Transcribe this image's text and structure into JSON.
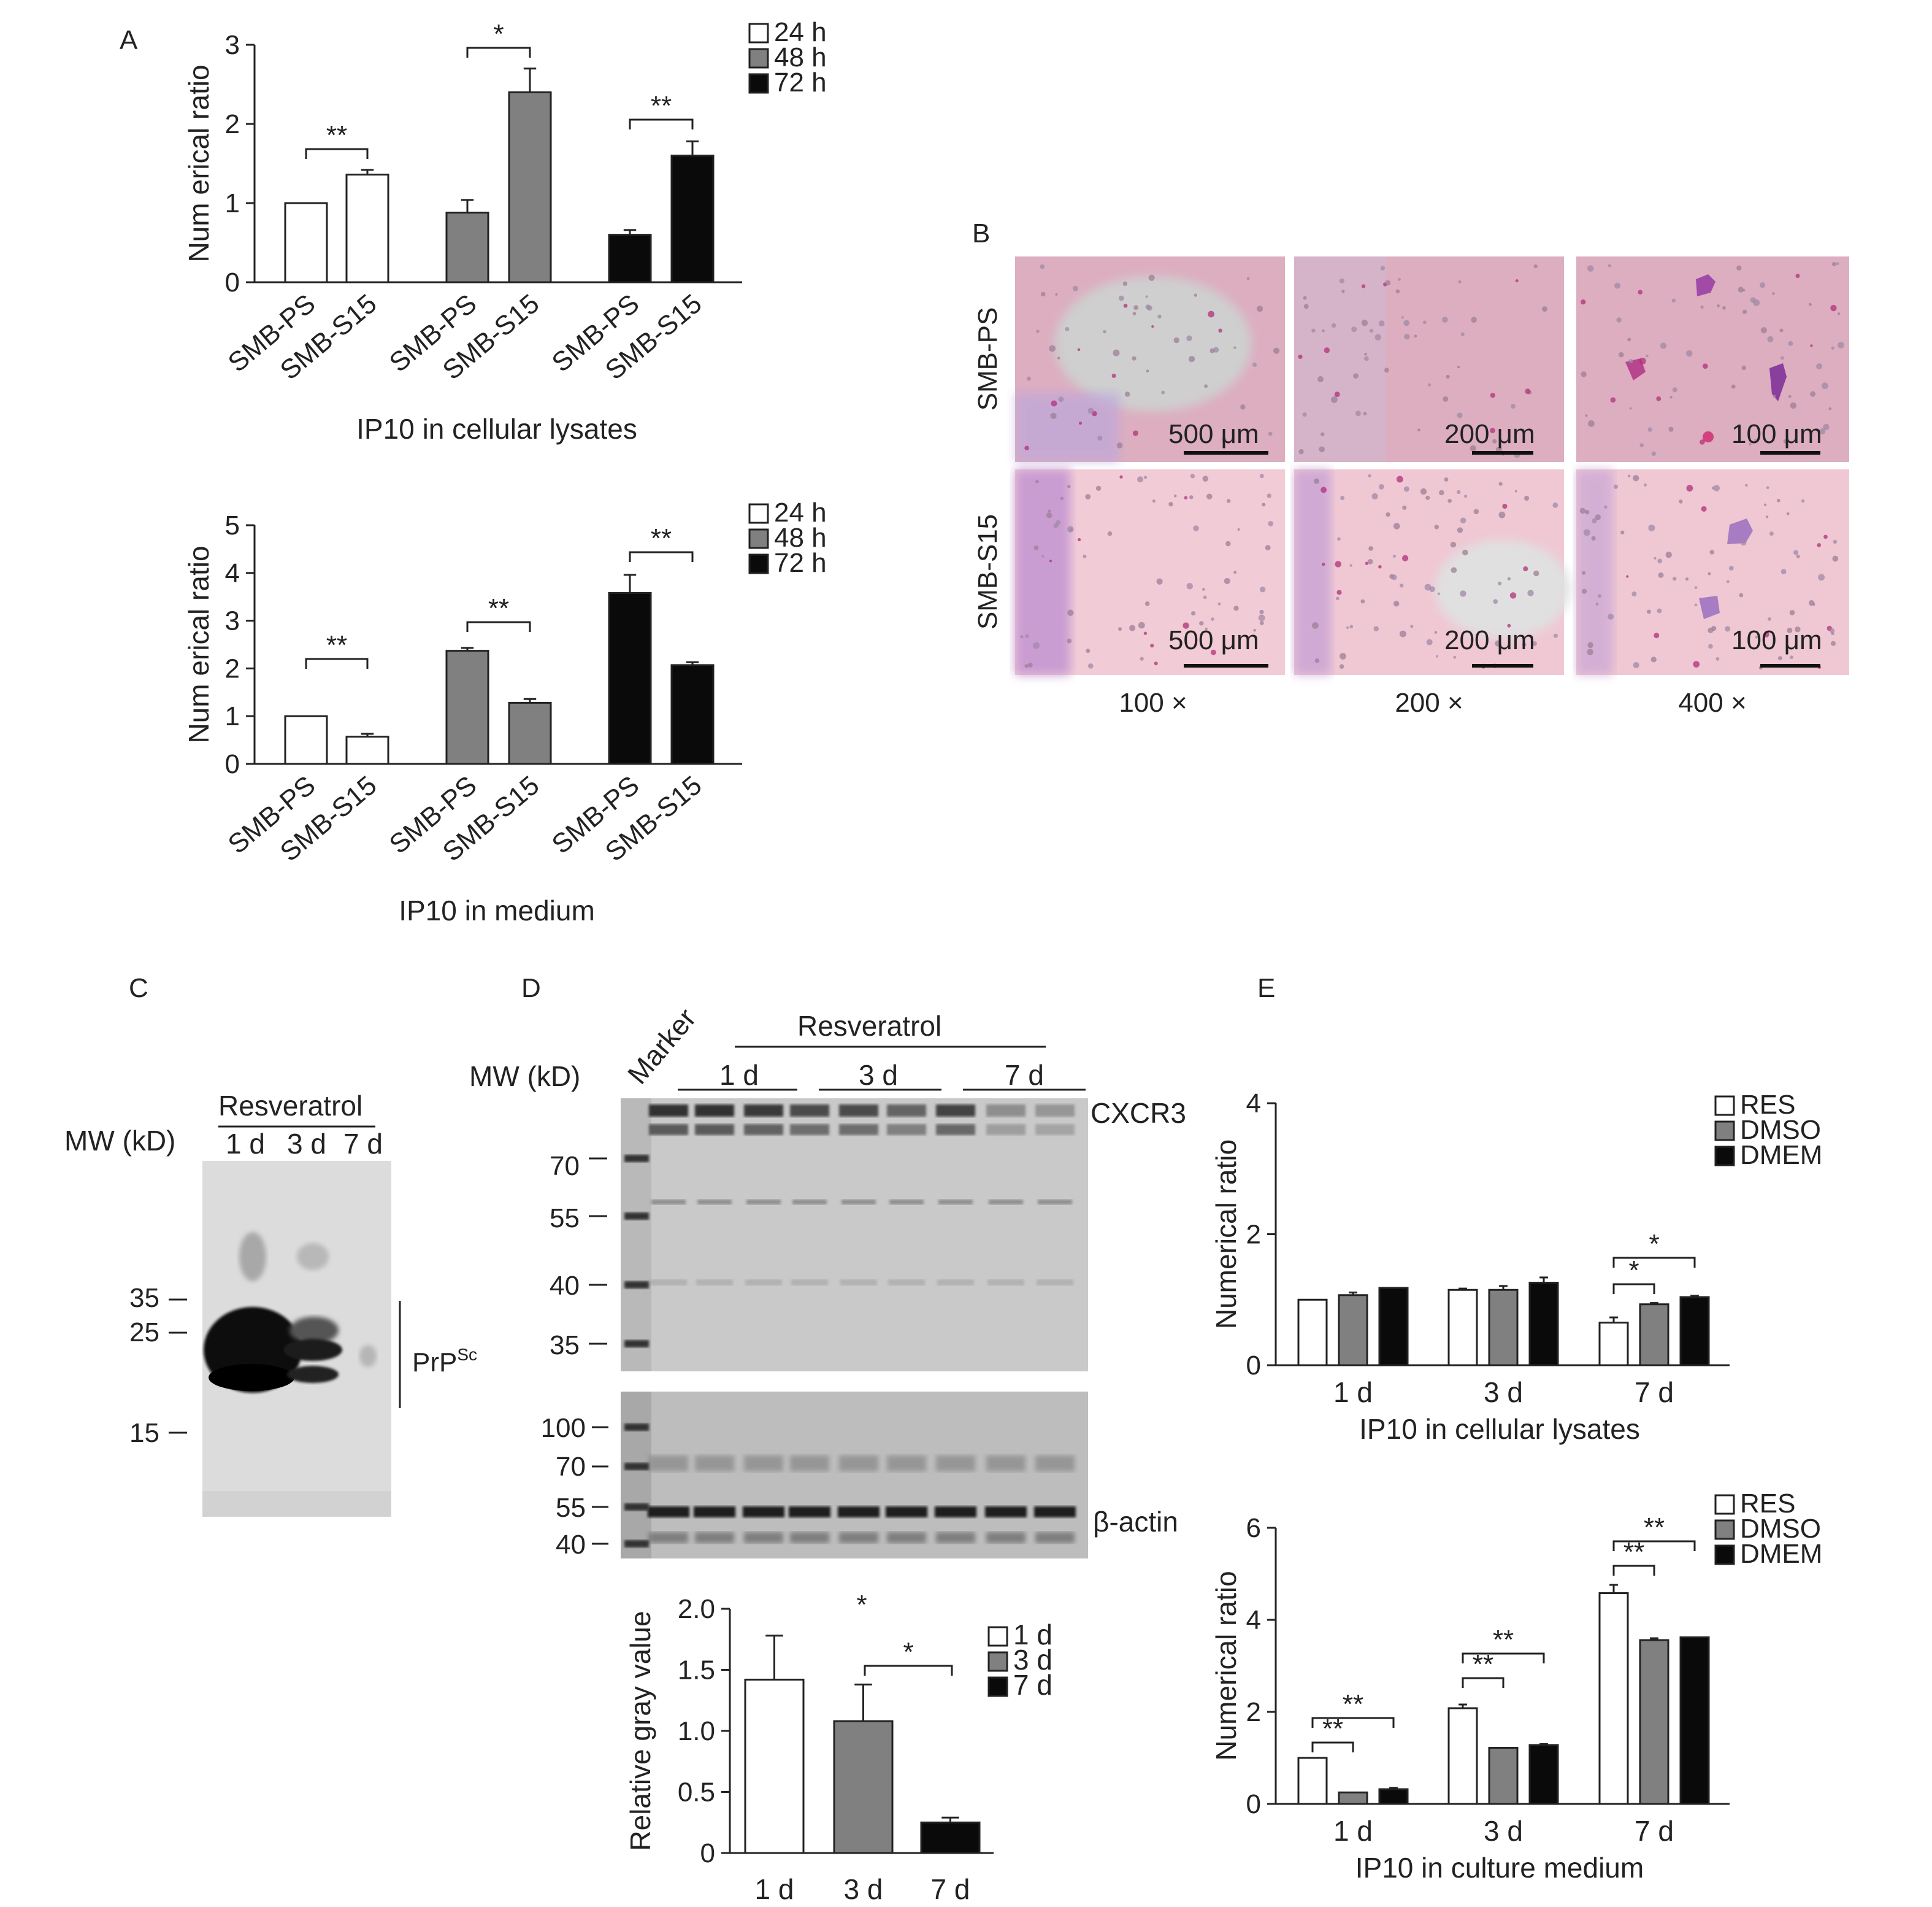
{
  "colors": {
    "white": "#ffffff",
    "gray": "#808080",
    "black": "#0a0a0a",
    "axis": "#222222"
  },
  "panels": {
    "A": {
      "letter": "A"
    },
    "B": {
      "letter": "B"
    },
    "C": {
      "letter": "C"
    },
    "D": {
      "letter": "D"
    },
    "E": {
      "letter": "E"
    }
  },
  "chart_data": [
    {
      "id": "A1",
      "type": "bar",
      "title": "IP10 in cellular lysates",
      "ylabel": "Num erical ratio",
      "ylim": [
        0,
        3
      ],
      "yticks": [
        0,
        1,
        2,
        3
      ],
      "categories": [
        "SMB-PS",
        "SMB-S15",
        "SMB-PS",
        "SMB-S15",
        "SMB-PS",
        "SMB-S15"
      ],
      "legend": [
        "24 h",
        "48 h",
        "72 h"
      ],
      "bars": [
        {
          "group": "24 h",
          "label": "SMB-PS",
          "value": 1.0,
          "err": 0
        },
        {
          "group": "24 h",
          "label": "SMB-S15",
          "value": 1.36,
          "err": 0.06
        },
        {
          "group": "48 h",
          "label": "SMB-PS",
          "value": 0.88,
          "err": 0.16
        },
        {
          "group": "48 h",
          "label": "SMB-S15",
          "value": 2.4,
          "err": 0.3
        },
        {
          "group": "72 h",
          "label": "SMB-PS",
          "value": 0.6,
          "err": 0.06
        },
        {
          "group": "72 h",
          "label": "SMB-S15",
          "value": 1.6,
          "err": 0.18
        }
      ],
      "significance": [
        "**",
        "*",
        "**"
      ]
    },
    {
      "id": "A2",
      "type": "bar",
      "title": "IP10 in medium",
      "ylabel": "Num erical ratio",
      "ylim": [
        0,
        5
      ],
      "yticks": [
        0,
        1,
        2,
        3,
        4,
        5
      ],
      "categories": [
        "SMB-PS",
        "SMB-S15",
        "SMB-PS",
        "SMB-S15",
        "SMB-PS",
        "SMB-S15"
      ],
      "legend": [
        "24 h",
        "48 h",
        "72 h"
      ],
      "bars": [
        {
          "group": "24 h",
          "label": "SMB-PS",
          "value": 1.0,
          "err": 0
        },
        {
          "group": "24 h",
          "label": "SMB-S15",
          "value": 0.57,
          "err": 0.06
        },
        {
          "group": "48 h",
          "label": "SMB-PS",
          "value": 2.37,
          "err": 0.06
        },
        {
          "group": "48 h",
          "label": "SMB-S15",
          "value": 1.28,
          "err": 0.08
        },
        {
          "group": "72 h",
          "label": "SMB-PS",
          "value": 3.58,
          "err": 0.38
        },
        {
          "group": "72 h",
          "label": "SMB-S15",
          "value": 2.07,
          "err": 0.06
        }
      ],
      "significance": [
        "**",
        "**",
        "**"
      ]
    },
    {
      "id": "D",
      "type": "bar",
      "ylabel": "Relative gray value",
      "ylim": [
        0,
        2.0
      ],
      "yticks": [
        "0",
        "0.5",
        "1.0",
        "1.5",
        "2.0"
      ],
      "categories": [
        "1 d",
        "3 d",
        "7 d"
      ],
      "legend": [
        "1 d",
        "3 d",
        "7 d"
      ],
      "values": [
        1.42,
        1.08,
        0.25
      ],
      "errors": [
        0.36,
        0.3,
        0.04
      ],
      "significance": [
        "*",
        "*"
      ]
    },
    {
      "id": "E1",
      "type": "bar",
      "title": "IP10 in cellular lysates",
      "ylabel": "Numerical ratio",
      "ylim": [
        0,
        4
      ],
      "yticks": [
        0,
        2,
        4
      ],
      "categories": [
        "1 d",
        "3 d",
        "7 d"
      ],
      "series": [
        {
          "name": "RES",
          "values": [
            1.0,
            1.15,
            0.65
          ],
          "errors": [
            0,
            0.02,
            0.08
          ]
        },
        {
          "name": "DMSO",
          "values": [
            1.07,
            1.15,
            0.93
          ],
          "errors": [
            0.04,
            0.06,
            0.02
          ]
        },
        {
          "name": "DMEM",
          "values": [
            1.18,
            1.26,
            1.04
          ],
          "errors": [
            0,
            0.08,
            0.02
          ]
        }
      ],
      "significance": [
        "*",
        "*"
      ]
    },
    {
      "id": "E2",
      "type": "bar",
      "title": "IP10 in culture medium",
      "ylabel": "Numerical ratio",
      "ylim": [
        0,
        6
      ],
      "yticks": [
        0,
        2,
        4,
        6
      ],
      "categories": [
        "1 d",
        "3 d",
        "7 d"
      ],
      "series": [
        {
          "name": "RES",
          "values": [
            1.0,
            2.08,
            4.58
          ],
          "errors": [
            0,
            0.08,
            0.18
          ]
        },
        {
          "name": "DMSO",
          "values": [
            0.25,
            1.22,
            3.56
          ],
          "errors": [
            0,
            0,
            0.04
          ]
        },
        {
          "name": "DMEM",
          "values": [
            0.32,
            1.28,
            3.62
          ],
          "errors": [
            0.03,
            0.02,
            0
          ]
        }
      ],
      "significance": [
        "**",
        "**",
        "**",
        "**",
        "**",
        "**"
      ]
    }
  ],
  "micrographs": {
    "rows": [
      "SMB-PS",
      "SMB-S15"
    ],
    "columns": [
      "100 ×",
      "200 ×",
      "400 ×"
    ],
    "scale_bars": [
      "500 μm",
      "200 μm",
      "100 μm"
    ]
  },
  "blot_C": {
    "mw_label": "MW (kD)",
    "treatment": "Resveratrol",
    "lanes": [
      "1 d",
      "3 d",
      "7 d"
    ],
    "mw_markers": [
      "35",
      "25",
      "15"
    ],
    "band_label_main": "PrP",
    "band_label_sup": "Sc"
  },
  "blot_D": {
    "mw_label": "MW (kD)",
    "marker_label": "Marker",
    "treatment": "Resveratrol",
    "groups": [
      "1 d",
      "3 d",
      "7 d"
    ],
    "top_markers": [
      "70",
      "55",
      "40",
      "35"
    ],
    "bottom_markers": [
      "100",
      "70",
      "55",
      "40"
    ],
    "top_label": "CXCR3",
    "bottom_label": "β-actin"
  }
}
